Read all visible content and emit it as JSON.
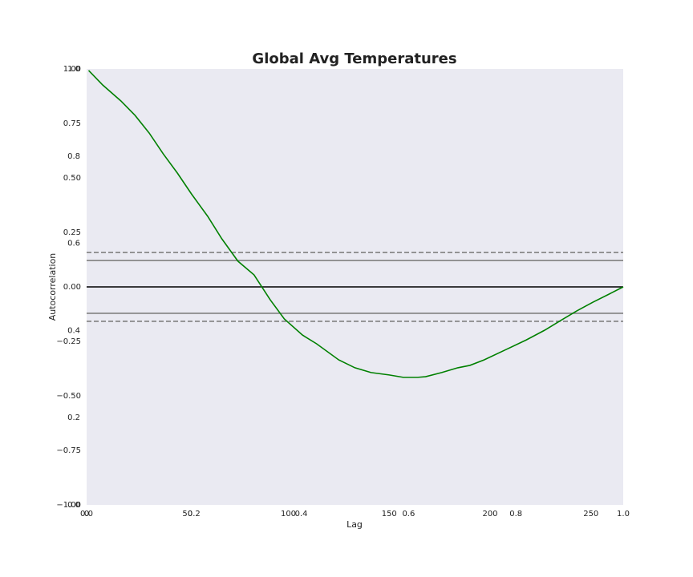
{
  "chart_data": {
    "type": "line",
    "title": "Global Avg Temperatures",
    "x_label": "Lag",
    "y_label": "Autocorrelation",
    "x": [
      1,
      8,
      17,
      24,
      31,
      38,
      45,
      52,
      60,
      67,
      75,
      83,
      91,
      98,
      107,
      114,
      125,
      133,
      141,
      150,
      157,
      164,
      168,
      176,
      184,
      190,
      197,
      208,
      218,
      227,
      235,
      243,
      251,
      259,
      266
    ],
    "series": [
      {
        "name": "Autocorrelation",
        "color": "#008000",
        "values": [
          0.993,
          0.926,
          0.853,
          0.787,
          0.706,
          0.61,
          0.522,
          0.426,
          0.324,
          0.221,
          0.118,
          0.055,
          -0.059,
          -0.147,
          -0.221,
          -0.261,
          -0.335,
          -0.371,
          -0.393,
          -0.404,
          -0.415,
          -0.415,
          -0.412,
          -0.393,
          -0.371,
          -0.36,
          -0.335,
          -0.287,
          -0.243,
          -0.199,
          -0.154,
          -0.11,
          -0.07,
          -0.033,
          0
        ]
      }
    ],
    "reference_lines": [
      {
        "value": 0.121,
        "style": "solid",
        "color": "#808080"
      },
      {
        "value": -0.121,
        "style": "solid",
        "color": "#808080"
      },
      {
        "value": 0.158,
        "style": "dashed",
        "color": "#808080"
      },
      {
        "value": -0.158,
        "style": "dashed",
        "color": "#808080"
      },
      {
        "value": 0,
        "style": "solid",
        "color": "#000000"
      }
    ],
    "xlim": [
      0,
      266
    ],
    "xticks": [
      0,
      50,
      100,
      150,
      200,
      250
    ],
    "ylim": [
      -1,
      1
    ],
    "yticks": [
      {
        "value": -1,
        "label": "−1.00"
      },
      {
        "value": -0.75,
        "label": "−0.75"
      },
      {
        "value": -0.5,
        "label": "−0.50"
      },
      {
        "value": -0.25,
        "label": "−0.25"
      },
      {
        "value": 0,
        "label": "0.00"
      },
      {
        "value": 0.25,
        "label": "0.25"
      },
      {
        "value": 0.5,
        "label": "0.50"
      },
      {
        "value": 0.75,
        "label": "0.75"
      },
      {
        "value": 1,
        "label": "1.00"
      }
    ],
    "overlay_xlim": [
      0,
      1
    ],
    "overlay_xticks": [
      {
        "value": 0,
        "label": "0.0"
      },
      0.2,
      0.4,
      0.6,
      0.8,
      {
        "value": 1,
        "label": "1.0"
      }
    ],
    "overlay_ylim": [
      0,
      1
    ],
    "overlay_yticks": [
      {
        "value": 0,
        "label": "0.0"
      },
      0.2,
      0.4,
      0.6,
      0.8,
      {
        "value": 1,
        "label": "1.0"
      }
    ]
  }
}
